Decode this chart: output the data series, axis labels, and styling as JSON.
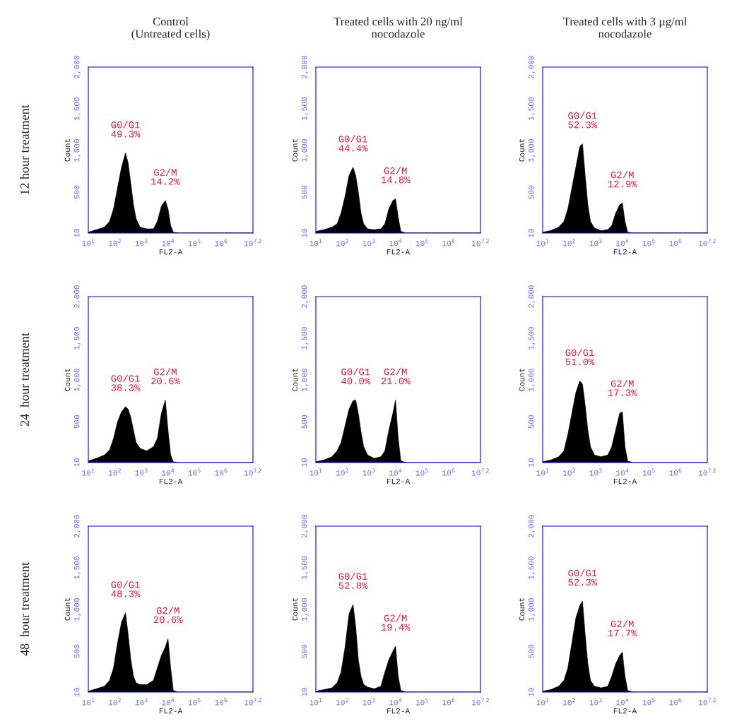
{
  "chart_data": [
    {
      "type": "area",
      "title": "Control\n(Untreated cells)",
      "subtitle": "12 hour treatment",
      "xlabel": "FL2-A",
      "ylabel": "Count",
      "log": "x",
      "xlim": [
        10,
        15848932
      ],
      "ylim": [
        10,
        2000
      ],
      "xticks": [
        {
          "value": 10,
          "label": "10$^{1}$"
        },
        {
          "value": 100,
          "label": "10$^{2}$"
        },
        {
          "value": 1000,
          "label": "10$^{3}$"
        },
        {
          "value": 10000,
          "label": "10$^{4}$"
        },
        {
          "value": 100000,
          "label": "10$^{5}$"
        },
        {
          "value": 1000000,
          "label": "10$^{6}$"
        },
        {
          "value": 15848932,
          "label": "10$^{7.2}$"
        }
      ],
      "yticks": [
        10,
        500,
        {
          "value": 1000,
          "label": "1,000"
        },
        {
          "value": 1500,
          "label": "1,500"
        },
        {
          "value": 2000,
          "label": "2,000"
        }
      ],
      "annotations": [
        "G0/G1\n49.3%",
        "G2/M\n14.2%"
      ],
      "x": [
        10,
        20,
        40,
        63,
        89,
        126,
        178,
        251,
        316,
        398,
        501,
        631,
        891,
        1585,
        2818,
        3981,
        5623,
        7943,
        10000,
        12589,
        15849,
        25119,
        15848932
      ],
      "series": [
        {
          "color": "#000000",
          "values": [
            20,
            50,
            80,
            150,
            300,
            550,
            800,
            970,
            850,
            600,
            350,
            180,
            80,
            60,
            60,
            150,
            330,
            400,
            300,
            100,
            20,
            10,
            10
          ]
        }
      ]
    },
    {
      "type": "area",
      "title": "Treated cells with 20 ng/ml\nnocodazole",
      "xlabel": "FL2-A",
      "ylabel": "Count",
      "log": "x",
      "xlim": [
        10,
        15848932
      ],
      "ylim": [
        10,
        2000
      ],
      "xticks": [
        {
          "value": 10,
          "label": "10$^{1}$"
        },
        {
          "value": 100,
          "label": "10$^{2}$"
        },
        {
          "value": 1000,
          "label": "10$^{3}$"
        },
        {
          "value": 10000,
          "label": "10$^{4}$"
        },
        {
          "value": 100000,
          "label": "10$^{5}$"
        },
        {
          "value": 1000000,
          "label": "10$^{6}$"
        },
        {
          "value": 15848932,
          "label": "10$^{7.2}$"
        }
      ],
      "yticks": [
        10,
        500,
        {
          "value": 1000,
          "label": "1,000"
        },
        {
          "value": 1500,
          "label": "1,500"
        },
        {
          "value": 2000,
          "label": "2,000"
        }
      ],
      "annotations": [
        "G0/G1\n44.4%",
        "G2/M\n14.8%"
      ],
      "x": [
        10,
        20,
        40,
        63,
        89,
        126,
        178,
        251,
        316,
        398,
        501,
        631,
        891,
        1585,
        2818,
        3981,
        5623,
        7943,
        10000,
        12589,
        15849,
        25119,
        15848932
      ],
      "series": [
        {
          "color": "#000000",
          "values": [
            30,
            50,
            80,
            120,
            250,
            450,
            700,
            800,
            700,
            500,
            250,
            120,
            60,
            50,
            60,
            120,
            300,
            400,
            420,
            200,
            30,
            10,
            10
          ]
        }
      ]
    },
    {
      "type": "area",
      "title": "Treated cells with 3 µg/ml\nnocodazole",
      "xlabel": "FL2-A",
      "ylabel": "Count",
      "log": "x",
      "xlim": [
        10,
        15848932
      ],
      "ylim": [
        10,
        2000
      ],
      "xticks": [
        {
          "value": 10,
          "label": "10$^{1}$"
        },
        {
          "value": 100,
          "label": "10$^{2}$"
        },
        {
          "value": 1000,
          "label": "10$^{3}$"
        },
        {
          "value": 10000,
          "label": "10$^{4}$"
        },
        {
          "value": 100000,
          "label": "10$^{5}$"
        },
        {
          "value": 1000000,
          "label": "10$^{6}$"
        },
        {
          "value": 15848932,
          "label": "10$^{7.2}$"
        }
      ],
      "yticks": [
        10,
        500,
        {
          "value": 1000,
          "label": "1,000"
        },
        {
          "value": 1500,
          "label": "1,500"
        },
        {
          "value": 2000,
          "label": "2,000"
        }
      ],
      "annotations": [
        "G0/G1\n52.3%",
        "G2/M\n12.9%"
      ],
      "x": [
        10,
        20,
        40,
        63,
        89,
        126,
        178,
        251,
        316,
        398,
        501,
        631,
        891,
        1585,
        2818,
        3981,
        5623,
        7943,
        10000,
        12589,
        15849,
        25119,
        15848932
      ],
      "series": [
        {
          "color": "#000000",
          "values": [
            20,
            40,
            80,
            150,
            300,
            550,
            800,
            1050,
            1080,
            700,
            350,
            150,
            70,
            40,
            50,
            100,
            250,
            350,
            370,
            150,
            20,
            10,
            10
          ]
        }
      ]
    },
    {
      "type": "area",
      "subtitle": "24  hour treatment",
      "xlabel": "FL2-A",
      "ylabel": "Count",
      "log": "x",
      "xlim": [
        10,
        15848932
      ],
      "ylim": [
        10,
        2000
      ],
      "xticks": [
        {
          "value": 10,
          "label": "10$^{1}$"
        },
        {
          "value": 100,
          "label": "10$^{2}$"
        },
        {
          "value": 1000,
          "label": "10$^{3}$"
        },
        {
          "value": 10000,
          "label": "10$^{4}$"
        },
        {
          "value": 100000,
          "label": "10$^{5}$"
        },
        {
          "value": 1000000,
          "label": "10$^{6}$"
        },
        {
          "value": 15848932,
          "label": "10$^{7.2}$"
        }
      ],
      "yticks": [
        10,
        500,
        {
          "value": 1000,
          "label": "1,000"
        },
        {
          "value": 1500,
          "label": "1,500"
        },
        {
          "value": 2000,
          "label": "2,000"
        }
      ],
      "annotations": [
        "G0/G1\n38.3%",
        "G2/M\n20.6%"
      ],
      "x": [
        10,
        20,
        40,
        63,
        89,
        126,
        178,
        251,
        316,
        398,
        501,
        631,
        891,
        1585,
        2818,
        3981,
        5623,
        7943,
        10000,
        12589,
        15849,
        25119,
        15848932
      ],
      "series": [
        {
          "color": "#000000",
          "values": [
            30,
            60,
            100,
            160,
            300,
            500,
            620,
            680,
            650,
            550,
            400,
            250,
            180,
            150,
            200,
            300,
            600,
            760,
            400,
            100,
            20,
            10,
            10
          ]
        }
      ]
    },
    {
      "type": "area",
      "xlabel": "FL2-A",
      "ylabel": "Count",
      "log": "x",
      "xlim": [
        10,
        15848932
      ],
      "ylim": [
        10,
        2000
      ],
      "xticks": [
        {
          "value": 10,
          "label": "10$^{1}$"
        },
        {
          "value": 100,
          "label": "10$^{2}$"
        },
        {
          "value": 1000,
          "label": "10$^{3}$"
        },
        {
          "value": 10000,
          "label": "10$^{4}$"
        },
        {
          "value": 100000,
          "label": "10$^{5}$"
        },
        {
          "value": 1000000,
          "label": "10$^{6}$"
        },
        {
          "value": 15848932,
          "label": "10$^{7.2}$"
        }
      ],
      "yticks": [
        10,
        500,
        {
          "value": 1000,
          "label": "1,000"
        },
        {
          "value": 1500,
          "label": "1,500"
        },
        {
          "value": 2000,
          "label": "2,000"
        }
      ],
      "annotations": [
        "G0/G1\n40.0%",
        "G2/M\n21.0%"
      ],
      "x": [
        10,
        20,
        40,
        63,
        89,
        126,
        178,
        251,
        316,
        398,
        501,
        631,
        891,
        1585,
        2818,
        3981,
        5623,
        7943,
        10000,
        12589,
        15849,
        25119,
        15848932
      ],
      "series": [
        {
          "color": "#000000",
          "values": [
            20,
            40,
            80,
            150,
            250,
            450,
            650,
            750,
            760,
            600,
            380,
            200,
            100,
            60,
            80,
            150,
            400,
            600,
            760,
            300,
            30,
            10,
            10
          ]
        }
      ]
    },
    {
      "type": "area",
      "xlabel": "FL2-A",
      "ylabel": "Count",
      "log": "x",
      "xlim": [
        10,
        15848932
      ],
      "ylim": [
        10,
        2000
      ],
      "xticks": [
        {
          "value": 10,
          "label": "10$^{1}$"
        },
        {
          "value": 100,
          "label": "10$^{2}$"
        },
        {
          "value": 1000,
          "label": "10$^{3}$"
        },
        {
          "value": 10000,
          "label": "10$^{4}$"
        },
        {
          "value": 100000,
          "label": "10$^{5}$"
        },
        {
          "value": 1000000,
          "label": "10$^{6}$"
        },
        {
          "value": 15848932,
          "label": "10$^{7.2}$"
        }
      ],
      "yticks": [
        10,
        500,
        {
          "value": 1000,
          "label": "1,000"
        },
        {
          "value": 1500,
          "label": "1,500"
        },
        {
          "value": 2000,
          "label": "2,000"
        }
      ],
      "annotations": [
        "G0/G1\n51.0%",
        "G2/M\n17.3%"
      ],
      "x": [
        10,
        20,
        40,
        63,
        89,
        126,
        178,
        251,
        316,
        398,
        501,
        631,
        891,
        1585,
        2818,
        3981,
        5623,
        7943,
        10000,
        12589,
        15849,
        25119,
        15848932
      ],
      "series": [
        {
          "color": "#000000",
          "values": [
            20,
            40,
            80,
            150,
            350,
            600,
            850,
            990,
            950,
            700,
            400,
            200,
            100,
            80,
            100,
            200,
            400,
            600,
            620,
            200,
            30,
            10,
            10
          ]
        }
      ]
    },
    {
      "type": "area",
      "subtitle": "48  hour treatment",
      "xlabel": "FL2-A",
      "ylabel": "Count",
      "log": "x",
      "xlim": [
        10,
        15848932
      ],
      "ylim": [
        10,
        2000
      ],
      "xticks": [
        {
          "value": 10,
          "label": "10$^{1}$"
        },
        {
          "value": 100,
          "label": "10$^{2}$"
        },
        {
          "value": 1000,
          "label": "10$^{3}$"
        },
        {
          "value": 10000,
          "label": "10$^{4}$"
        },
        {
          "value": 100000,
          "label": "10$^{5}$"
        },
        {
          "value": 1000000,
          "label": "10$^{6}$"
        },
        {
          "value": 15848932,
          "label": "10$^{7.2}$"
        }
      ],
      "yticks": [
        10,
        500,
        {
          "value": 1000,
          "label": "1,000"
        },
        {
          "value": 1500,
          "label": "1,500"
        },
        {
          "value": 2000,
          "label": "2,000"
        }
      ],
      "annotations": [
        "G0/G1\n48.3%",
        "G2/M\n20.6%"
      ],
      "x": [
        10,
        20,
        40,
        63,
        89,
        126,
        178,
        251,
        316,
        398,
        501,
        631,
        891,
        1585,
        2818,
        3981,
        5623,
        7943,
        10000,
        12589,
        15849,
        25119,
        15848932
      ],
      "series": [
        {
          "color": "#000000",
          "values": [
            20,
            50,
            80,
            150,
            300,
            600,
            850,
            960,
            700,
            400,
            200,
            120,
            100,
            100,
            150,
            300,
            450,
            550,
            650,
            300,
            30,
            10,
            10
          ]
        }
      ]
    },
    {
      "type": "area",
      "xlabel": "FL2-A",
      "ylabel": "Count",
      "log": "x",
      "xlim": [
        10,
        15848932
      ],
      "ylim": [
        10,
        2000
      ],
      "xticks": [
        {
          "value": 10,
          "label": "10$^{1}$"
        },
        {
          "value": 100,
          "label": "10$^{2}$"
        },
        {
          "value": 1000,
          "label": "10$^{3}$"
        },
        {
          "value": 10000,
          "label": "10$^{4}$"
        },
        {
          "value": 100000,
          "label": "10$^{5}$"
        },
        {
          "value": 1000000,
          "label": "10$^{6}$"
        },
        {
          "value": 15848932,
          "label": "10$^{7.2}$"
        }
      ],
      "yticks": [
        10,
        500,
        {
          "value": 1000,
          "label": "1,000"
        },
        {
          "value": 1500,
          "label": "1,500"
        },
        {
          "value": 2000,
          "label": "2,000"
        }
      ],
      "annotations": [
        "G0/G1\n52.8%",
        "G2/M\n19.4%"
      ],
      "x": [
        10,
        20,
        40,
        63,
        89,
        126,
        178,
        251,
        316,
        398,
        501,
        631,
        891,
        1585,
        2818,
        3981,
        5623,
        7943,
        10000,
        12589,
        15849,
        25119,
        15848932
      ],
      "series": [
        {
          "color": "#000000",
          "values": [
            20,
            40,
            60,
            120,
            250,
            550,
            950,
            1060,
            800,
            400,
            200,
            100,
            70,
            50,
            80,
            250,
            400,
            500,
            560,
            200,
            30,
            10,
            10
          ]
        }
      ]
    },
    {
      "type": "area",
      "xlabel": "FL2-A",
      "ylabel": "Count",
      "log": "x",
      "xlim": [
        10,
        15848932
      ],
      "ylim": [
        10,
        2000
      ],
      "xticks": [
        {
          "value": 10,
          "label": "10$^{1}$"
        },
        {
          "value": 100,
          "label": "10$^{2}$"
        },
        {
          "value": 1000,
          "label": "10$^{3}$"
        },
        {
          "value": 10000,
          "label": "10$^{4}$"
        },
        {
          "value": 100000,
          "label": "10$^{5}$"
        },
        {
          "value": 1000000,
          "label": "10$^{6}$"
        },
        {
          "value": 15848932,
          "label": "10$^{7.2}$"
        }
      ],
      "yticks": [
        10,
        500,
        {
          "value": 1000,
          "label": "1,000"
        },
        {
          "value": 1500,
          "label": "1,500"
        },
        {
          "value": 2000,
          "label": "2,000"
        }
      ],
      "annotations": [
        "G0/G1\n52.3%",
        "G2/M\n17.7%"
      ],
      "x": [
        10,
        20,
        40,
        63,
        89,
        126,
        178,
        251,
        316,
        398,
        501,
        631,
        891,
        1585,
        2818,
        3981,
        5623,
        7943,
        10000,
        12589,
        15849,
        25119,
        15848932
      ],
      "series": [
        {
          "color": "#000000",
          "values": [
            20,
            40,
            80,
            150,
            300,
            600,
            900,
            1050,
            1100,
            700,
            350,
            150,
            80,
            60,
            80,
            200,
            350,
            450,
            490,
            200,
            30,
            10,
            10
          ]
        }
      ]
    }
  ]
}
